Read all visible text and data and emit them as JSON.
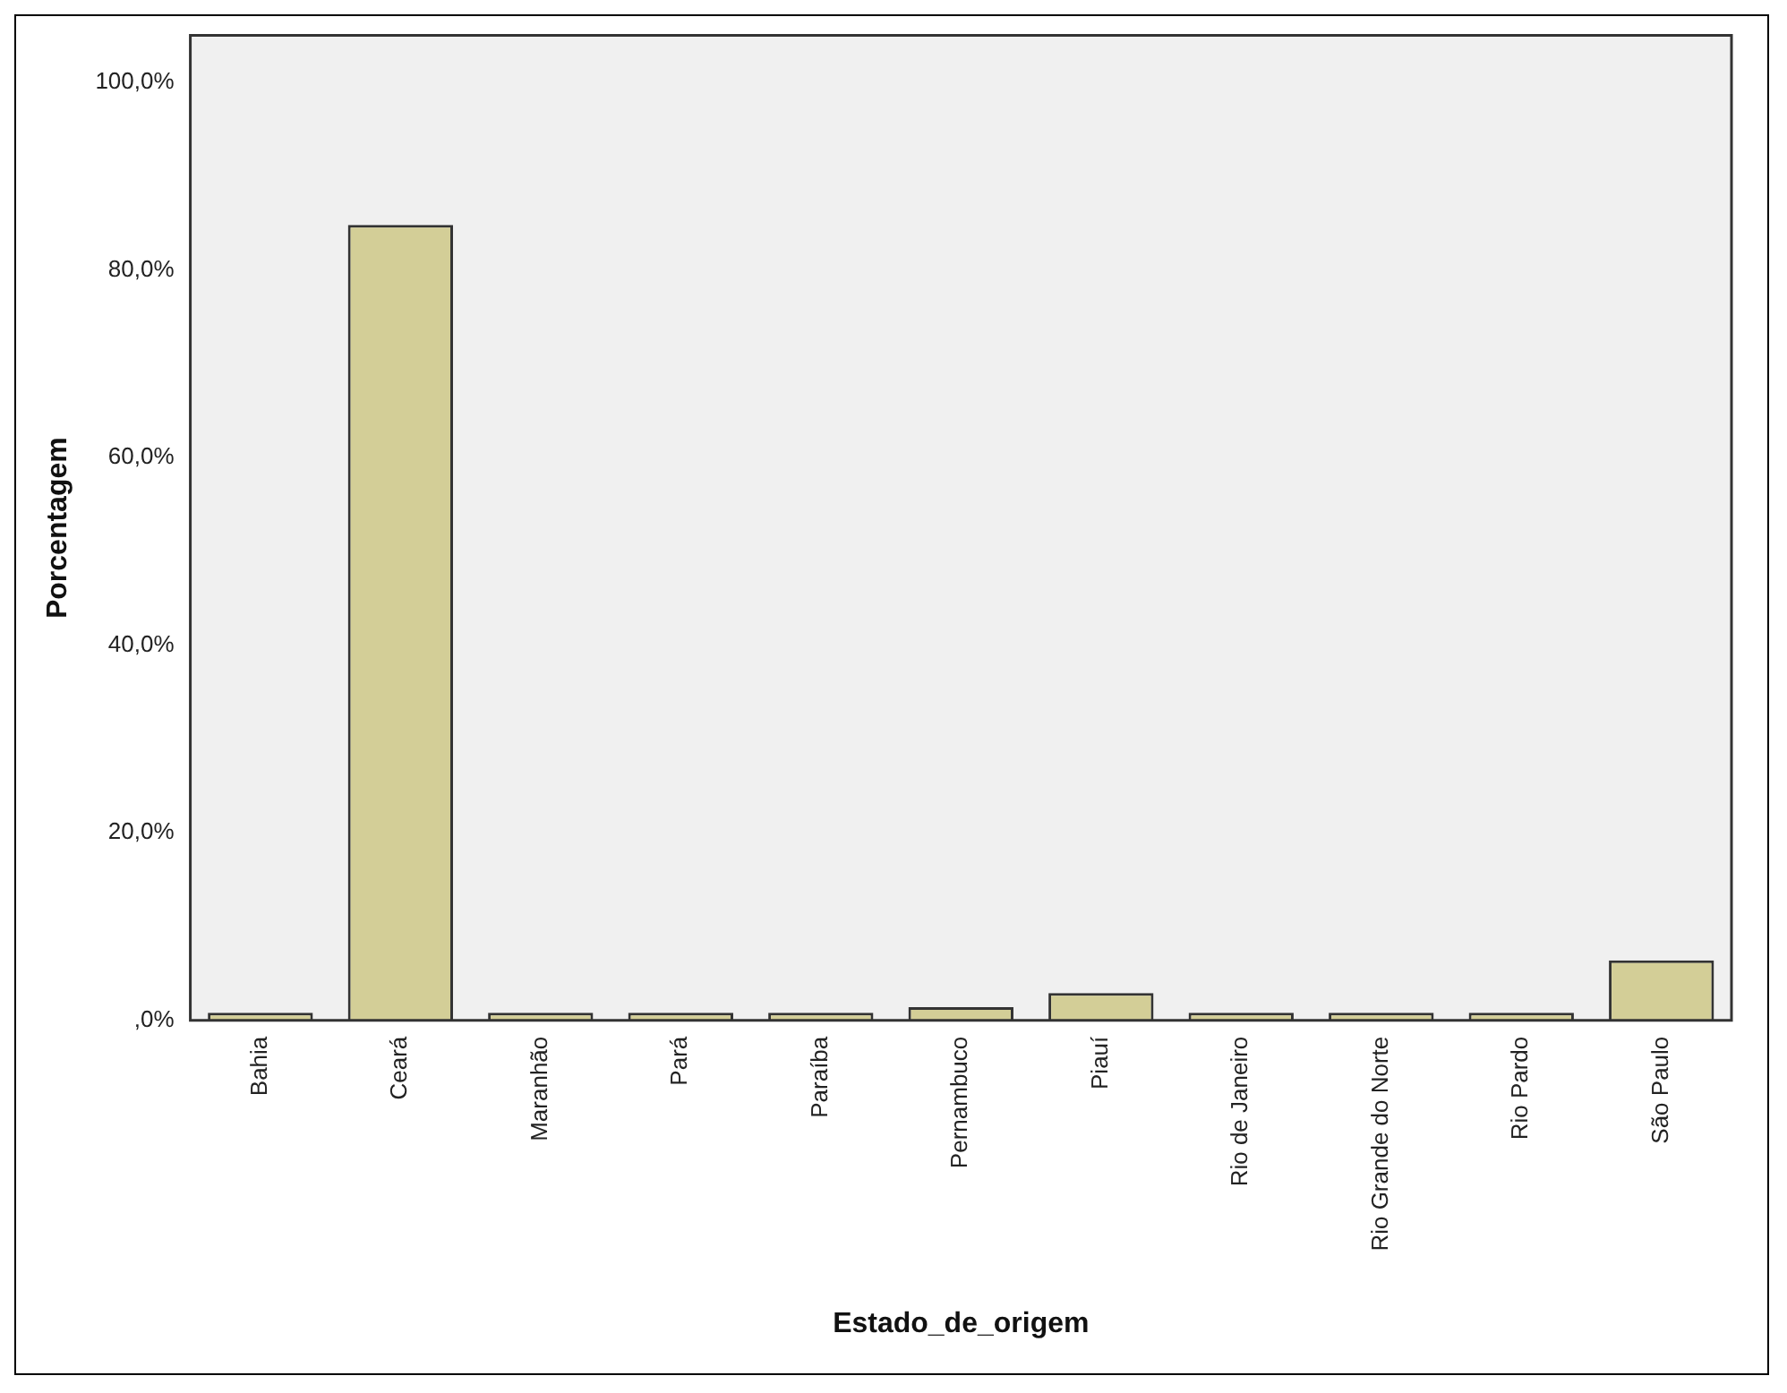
{
  "chart_data": {
    "type": "bar",
    "xlabel": "Estado_de_origem",
    "ylabel": "Porcentagem",
    "categories": [
      "Bahia",
      "Ceará",
      "Maranhão",
      "Pará",
      "Paraíba",
      "Pernambuco",
      "Piauí",
      "Rio de Janeiro",
      "Rio Grande do Norte",
      "Rio Pardo",
      "São Paulo"
    ],
    "values": [
      0.8,
      84.8,
      0.8,
      0.8,
      0.8,
      1.4,
      2.9,
      0.8,
      0.8,
      0.8,
      6.4
    ],
    "color": "#d3ce97",
    "ylim": [
      0,
      105
    ],
    "yticks": [
      {
        "value": 0,
        "label": ",0%"
      },
      {
        "value": 20,
        "label": "20,0%"
      },
      {
        "value": 40,
        "label": "40,0%"
      },
      {
        "value": 60,
        "label": "60,0%"
      },
      {
        "value": 80,
        "label": "80,0%"
      },
      {
        "value": 100,
        "label": "100,0%"
      }
    ],
    "grid": false,
    "legend": false
  }
}
